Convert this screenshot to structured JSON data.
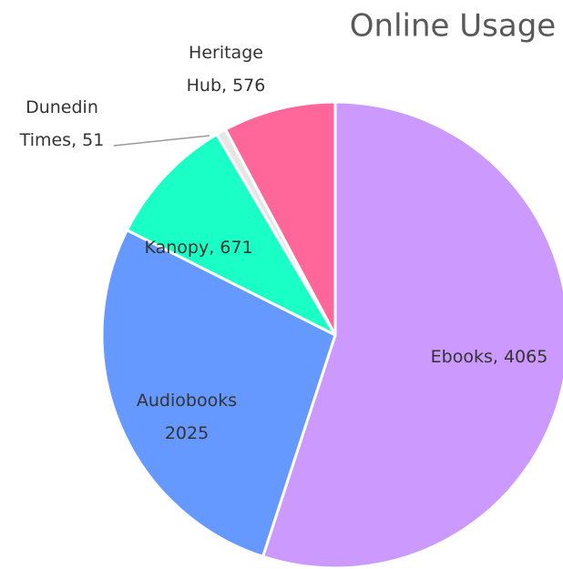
{
  "chart_data": {
    "type": "pie",
    "title": "Online Usage",
    "categories": [
      "Ebooks",
      "Audiobooks",
      "Kanopy",
      "Dunedin Times",
      "Heritage Hub"
    ],
    "values": [
      4065,
      2025,
      671,
      51,
      576
    ],
    "value_labels": [
      "Ebooks, 4065",
      "Audiobooks\n2025",
      "Kanopy, 671",
      "Dunedin\nTimes, 51",
      "Heritage\nHub, 576"
    ],
    "colors": [
      "#cc99ff",
      "#6699ff",
      "#1affc6",
      "#e6e6e6",
      "#ff6699"
    ]
  }
}
